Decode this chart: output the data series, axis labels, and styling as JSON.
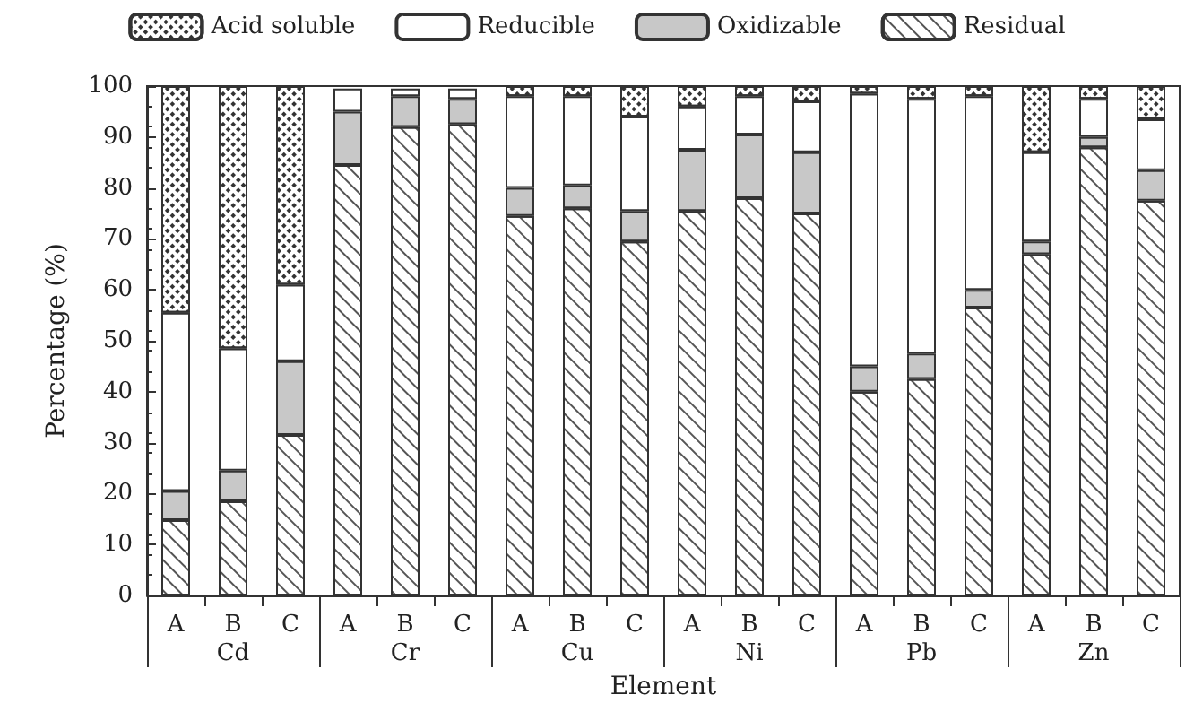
{
  "chart_data": {
    "type": "bar",
    "stacked": true,
    "xlabel": "Element",
    "ylabel": "Percentage (%)",
    "categories": [
      "A",
      "B",
      "C",
      "A",
      "B",
      "C",
      "A",
      "B",
      "C",
      "A",
      "B",
      "C",
      "A",
      "B",
      "C",
      "A",
      "B",
      "C"
    ],
    "annotations": [
      "Cd",
      "Cr",
      "Cu",
      "Ni",
      "Pb",
      "Zn"
    ],
    "series": [
      {
        "name": "Residual",
        "color": "#ffffff",
        "values": [
          14.8,
          18.5,
          31.5,
          84.5,
          92,
          92.5,
          74.5,
          76,
          69.5,
          75.5,
          78,
          75,
          40,
          42.5,
          56.5,
          67,
          88,
          77.5
        ]
      },
      {
        "name": "Oxidizable",
        "color": "#c8c8c8",
        "values": [
          5.7,
          6,
          14.5,
          10.5,
          6,
          5,
          5.5,
          4.5,
          6,
          12,
          12.5,
          12,
          5,
          5,
          3.5,
          2.5,
          2,
          6
        ]
      },
      {
        "name": "Reducible",
        "color": "#ffffff",
        "values": [
          35,
          24,
          15,
          4.5,
          1.5,
          2,
          18,
          17.5,
          18.5,
          8.5,
          7.5,
          10,
          53.5,
          50,
          38,
          17.5,
          7.5,
          10
        ]
      },
      {
        "name": "Acid soluble",
        "color": "#ffffff",
        "values": [
          44.5,
          51.5,
          39,
          null,
          null,
          null,
          2,
          2,
          6,
          4,
          2,
          3,
          1.5,
          2.5,
          2,
          13,
          2.5,
          6.5
        ]
      }
    ],
    "ylim": [
      0,
      100
    ],
    "yticks": [
      0,
      10,
      20,
      30,
      40,
      50,
      60,
      70,
      80,
      90,
      100
    ],
    "grid": false,
    "legend": "top"
  }
}
